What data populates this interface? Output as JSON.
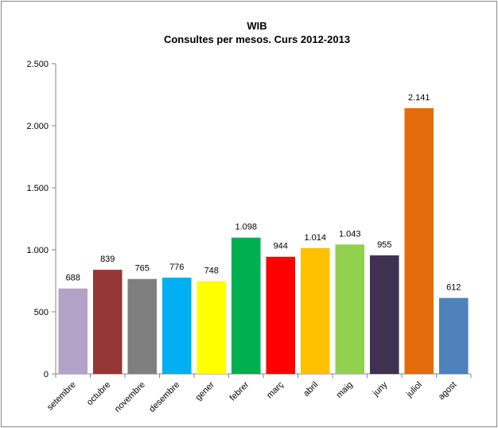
{
  "chart_data": {
    "type": "bar",
    "title": "WIB",
    "subtitle": "Consultes per mesos. Curs 2012-2013",
    "xlabel": "",
    "ylabel": "",
    "ylim": [
      0,
      2500
    ],
    "yticks": [
      0,
      500,
      1000,
      1500,
      2000,
      2500
    ],
    "ytick_labels": [
      "0",
      "500",
      "1.000",
      "1.500",
      "2.000",
      "2.500"
    ],
    "categories": [
      "setembre",
      "octubre",
      "novembre",
      "desembre",
      "gener",
      "febrer",
      "març",
      "abril",
      "maig",
      "juny",
      "juliol",
      "agost"
    ],
    "values": [
      688,
      839,
      765,
      776,
      748,
      1098,
      944,
      1014,
      1043,
      955,
      2141,
      612
    ],
    "value_labels": [
      "688",
      "839",
      "765",
      "776",
      "748",
      "1.098",
      "944",
      "1.014",
      "1.043",
      "955",
      "2.141",
      "612"
    ],
    "colors": [
      "#b3a2c7",
      "#953735",
      "#7f7f7f",
      "#00b0f0",
      "#ffff00",
      "#00b050",
      "#ff0000",
      "#ffc000",
      "#92d050",
      "#403151",
      "#e46c0a",
      "#4f81bd"
    ],
    "grid": false,
    "legend": "none"
  }
}
